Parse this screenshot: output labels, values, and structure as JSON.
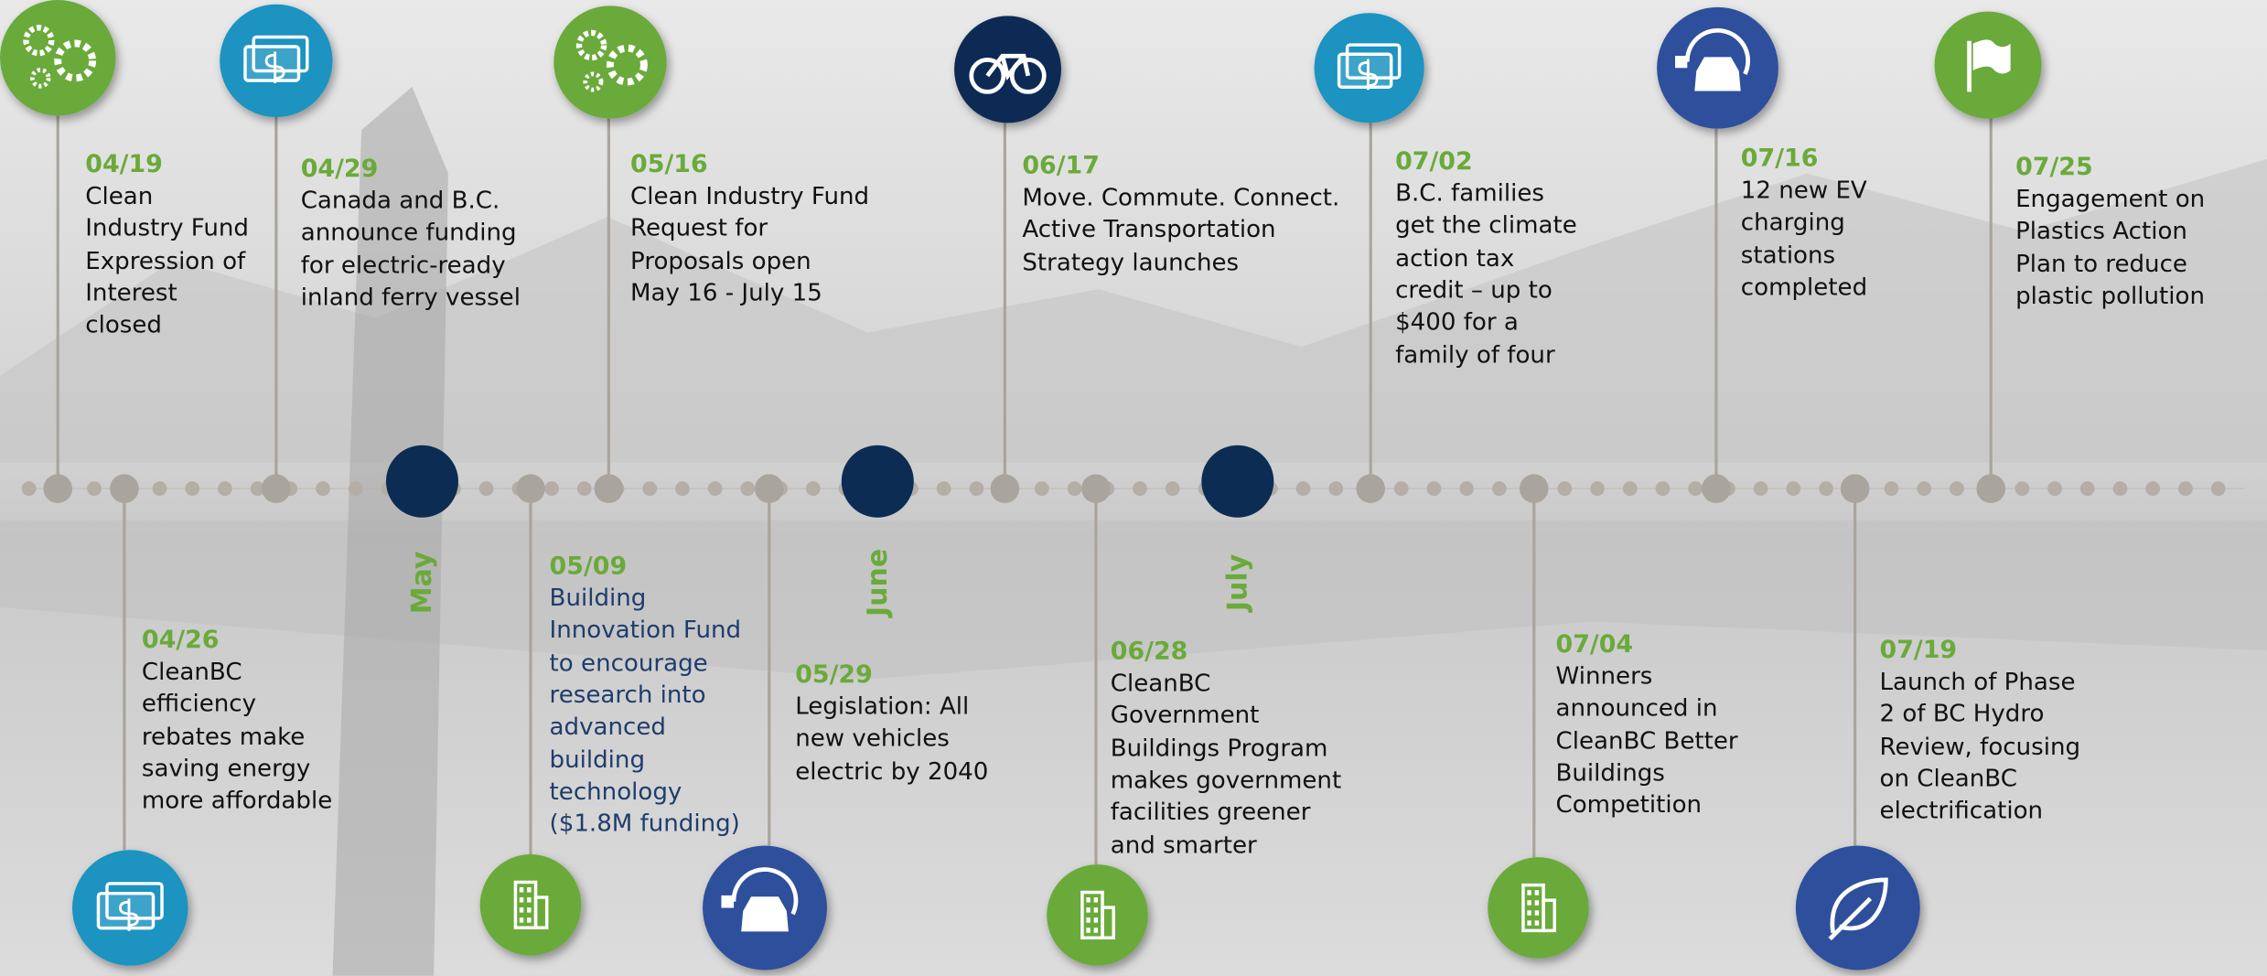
{
  "months": [
    "May",
    "June",
    "July"
  ],
  "events": [
    {
      "date": "04/19",
      "lines": [
        "Clean",
        "Industry Fund",
        "Expression of",
        "Interest",
        "closed"
      ]
    },
    {
      "date": "04/26",
      "lines": [
        "CleanBC",
        "efficiency",
        "rebates make",
        "saving energy",
        "more affordable"
      ]
    },
    {
      "date": "04/29",
      "lines": [
        "Canada and B.C.",
        "announce funding",
        "for electric-ready",
        "inland ferry vessel"
      ]
    },
    {
      "date": "05/09",
      "lines": [
        "Building",
        "Innovation Fund",
        "to encourage",
        "research into",
        "advanced",
        "building",
        "technology",
        "($1.8M funding)"
      ]
    },
    {
      "date": "05/16",
      "lines": [
        "Clean Industry Fund",
        "Request for",
        "Proposals open",
        "May 16 - July 15"
      ]
    },
    {
      "date": "05/29",
      "lines": [
        "Legislation: All",
        "new vehicles",
        "electric by 2040"
      ]
    },
    {
      "date": "06/17",
      "lines": [
        "Move. Commute. Connect.",
        "Active Transportation",
        "Strategy launches"
      ]
    },
    {
      "date": "06/28",
      "lines": [
        "CleanBC",
        "Government",
        "Buildings Program",
        "makes government",
        "facilities greener",
        "and smarter"
      ]
    },
    {
      "date": "07/02",
      "lines": [
        "B.C. families",
        "get the climate",
        "action tax",
        "credit – up to",
        "$400 for a",
        "family of four"
      ]
    },
    {
      "date": "07/04",
      "lines": [
        "Winners",
        "announced in",
        "CleanBC Better",
        "Buildings",
        "Competition"
      ]
    },
    {
      "date": "07/16",
      "lines": [
        "12 new EV",
        "charging",
        "stations",
        "completed"
      ]
    },
    {
      "date": "07/19",
      "lines": [
        "Launch of Phase",
        "2 of BC Hydro",
        "Review, focusing",
        "on CleanBC",
        "electrification"
      ]
    },
    {
      "date": "07/25",
      "lines": [
        "Engagement on",
        "Plastics Action",
        "Plan to reduce",
        "plastic pollution"
      ]
    }
  ]
}
